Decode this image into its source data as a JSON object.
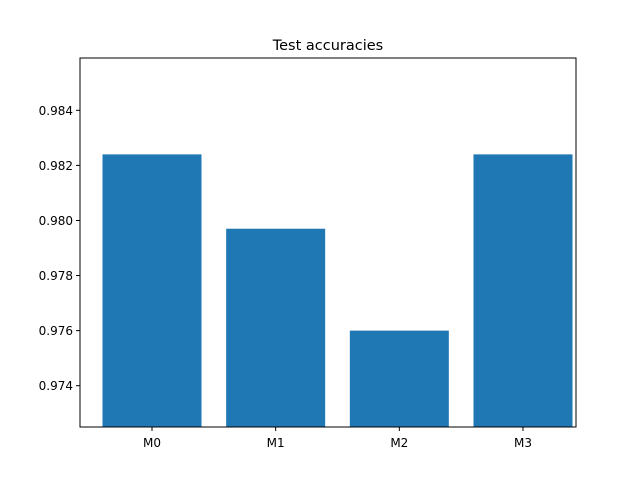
{
  "chart_data": {
    "type": "bar",
    "title": "Test accuracies",
    "xlabel": "",
    "ylabel": "",
    "categories": [
      "M0",
      "M1",
      "M2",
      "M3"
    ],
    "values": [
      0.9824,
      0.9797,
      0.976,
      0.9824
    ],
    "ylim": [
      0.9725,
      0.9859
    ],
    "yticks": [
      0.974,
      0.976,
      0.978,
      0.98,
      0.982,
      0.984
    ],
    "ytick_labels": [
      "0.974",
      "0.976",
      "0.978",
      "0.980",
      "0.982",
      "0.984"
    ],
    "bar_color": "#1f77b4",
    "grid": false,
    "legend": "none"
  }
}
